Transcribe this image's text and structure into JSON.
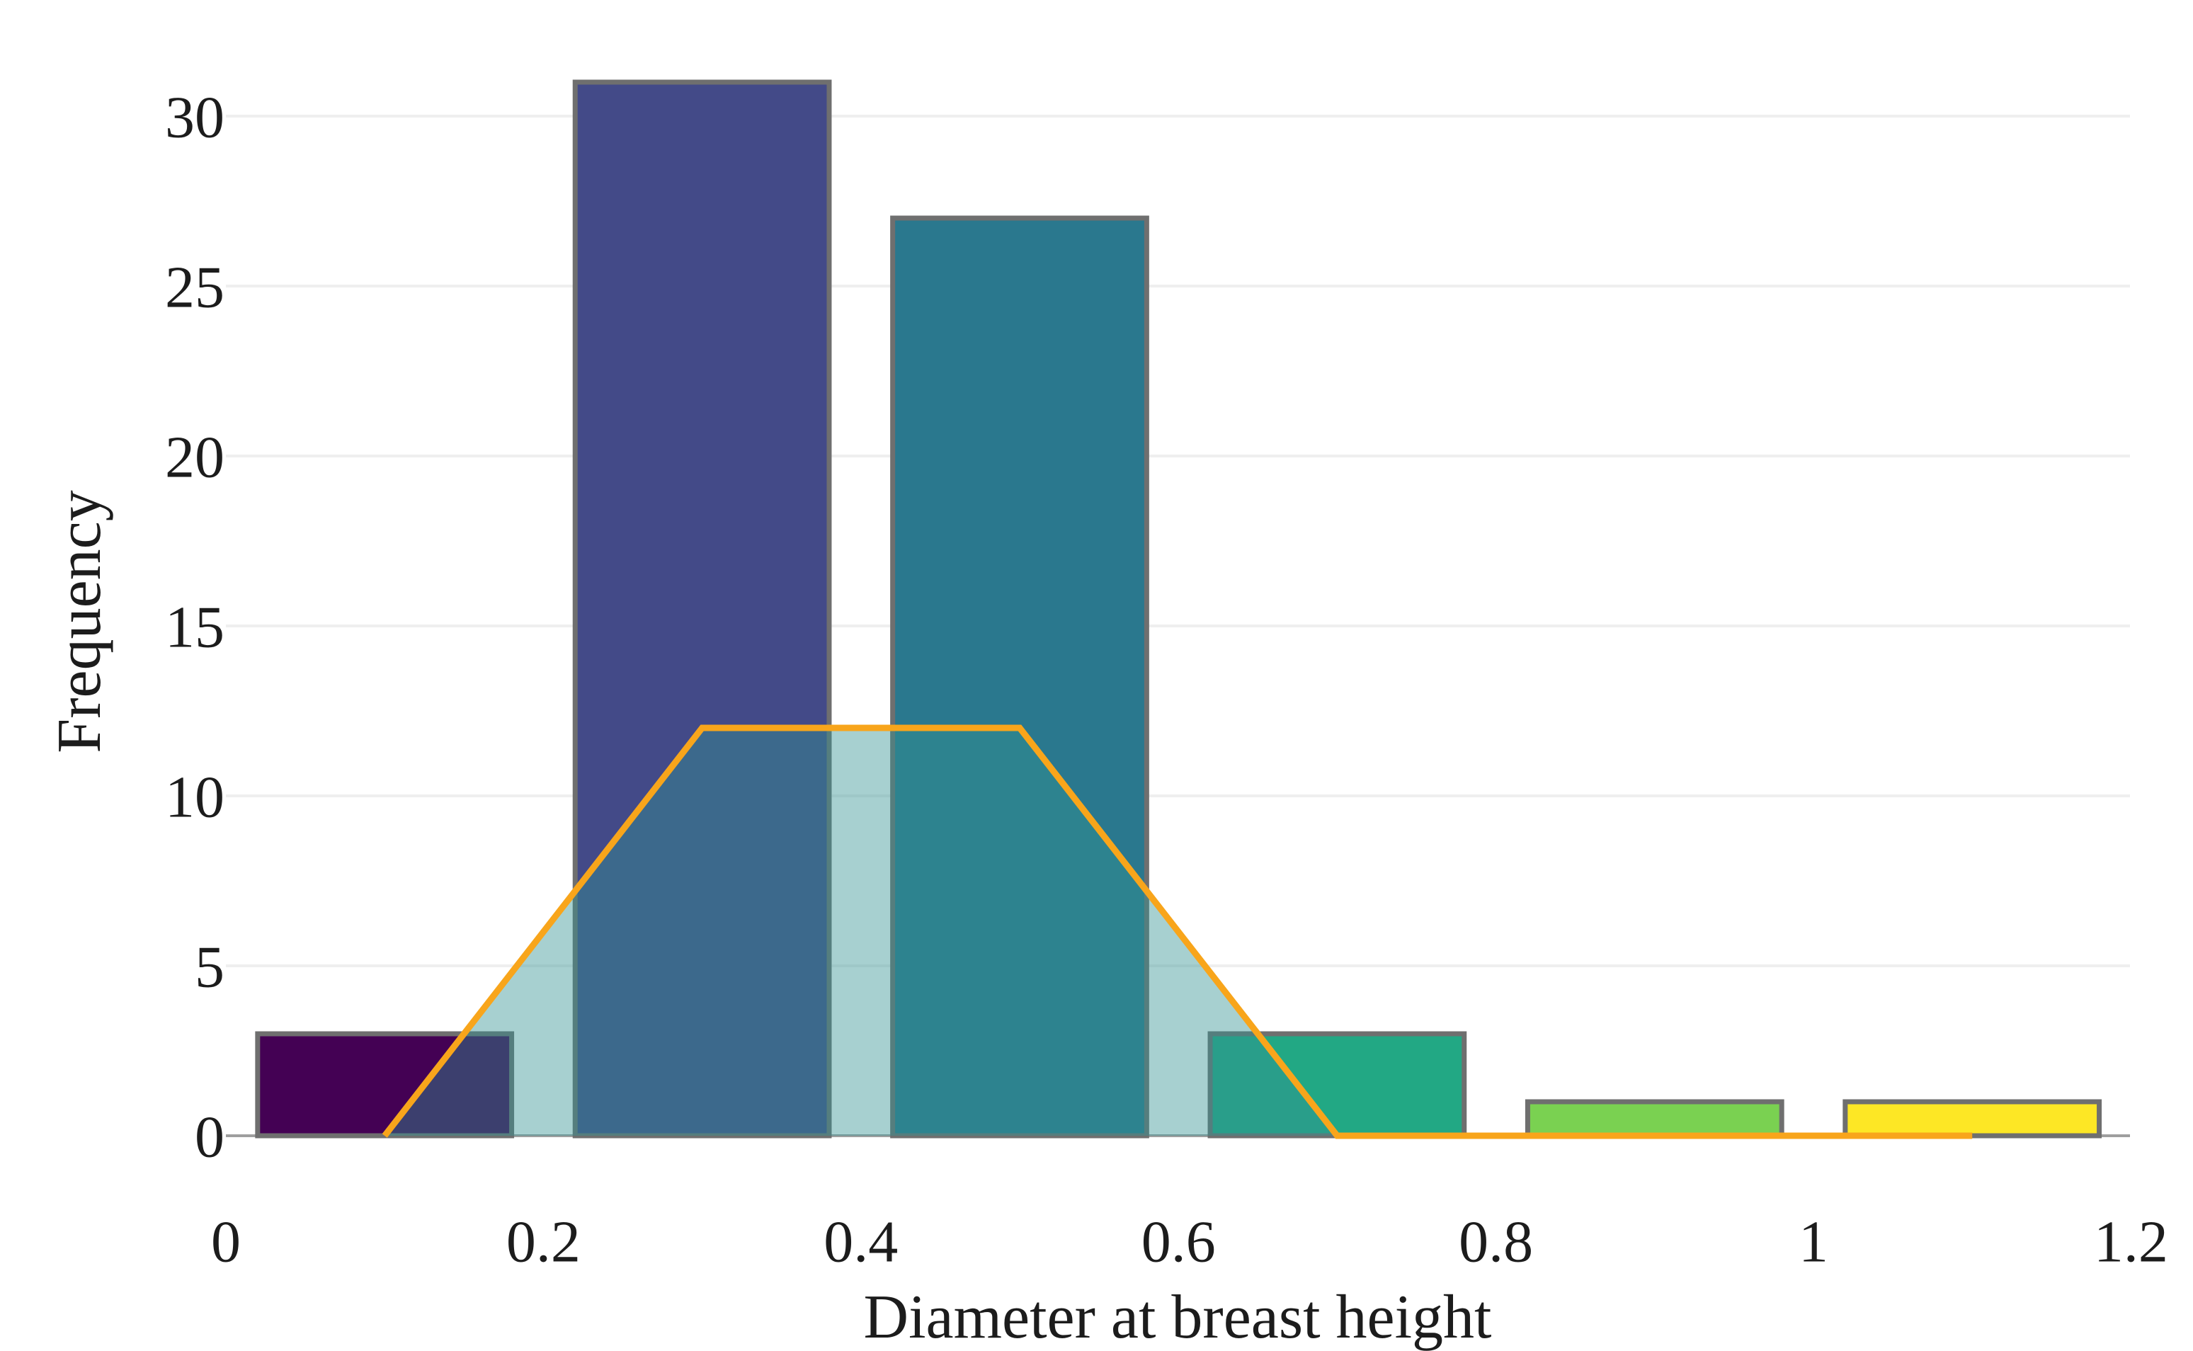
{
  "chart_data": {
    "type": "bar",
    "subtype": "histogram-with-frequency-polygon",
    "title": "",
    "xlabel": "Diameter at breast height",
    "ylabel": "Frequency",
    "xlim": [
      0,
      1.2
    ],
    "ylim": [
      0,
      31.5
    ],
    "grid": true,
    "legend_position": "none",
    "x_ticks": {
      "values": [
        0,
        0.2,
        0.4,
        0.6,
        0.8,
        1,
        1.2
      ],
      "labels": [
        "0",
        "0.2",
        "0.4",
        "0.6",
        "0.8",
        "1",
        "1.2"
      ]
    },
    "y_ticks": {
      "values": [
        0,
        5,
        10,
        15,
        20,
        25,
        30
      ],
      "labels": [
        "0",
        "5",
        "10",
        "15",
        "20",
        "25",
        "30"
      ]
    },
    "histogram": {
      "bin_width": 0.2,
      "bar_width": 0.16,
      "bin_centers": [
        0.1,
        0.3,
        0.5,
        0.7,
        0.9,
        1.1
      ],
      "counts": [
        3,
        31,
        27,
        3,
        1,
        1
      ],
      "bar_colors": [
        "#440154",
        "#434a88",
        "#2a788e",
        "#22a884",
        "#7ad151",
        "#fde725"
      ],
      "bar_border_color": "#6f6f6f"
    },
    "frequency_polygon": {
      "points": [
        [
          0.1,
          0
        ],
        [
          0.3,
          12
        ],
        [
          0.5,
          12
        ],
        [
          0.7,
          0
        ],
        [
          1.1,
          0
        ]
      ],
      "line_color": "#f8a51b",
      "fill_color": "#339292",
      "fill_opacity": 0.43
    },
    "colors": {
      "background": "#ffffff",
      "grid": "#efefef",
      "axis_line": "#9e9e9e",
      "text": "#1c1c1c"
    }
  }
}
